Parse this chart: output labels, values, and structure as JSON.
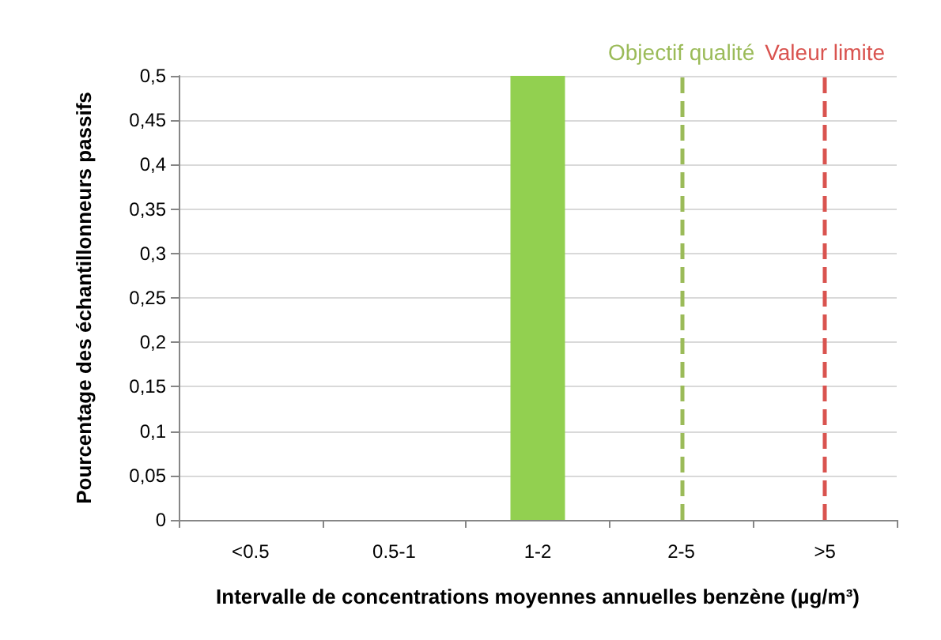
{
  "chart_data": {
    "type": "bar",
    "xlabel": "Intervalle de concentrations moyennes annuelles benzène (µg/m³)",
    "ylabel": "Pourcentage des échantillonneurs passifs",
    "categories": [
      "<0.5",
      "0.5-1",
      "1-2",
      "2-5",
      ">5"
    ],
    "values": [
      0,
      0,
      0.5,
      0,
      0
    ],
    "color": "#92d050",
    "ylim": [
      0,
      0.5
    ],
    "yticks": [
      0,
      {
        "value": 0.05,
        "label": "0,05"
      },
      {
        "value": 0.1,
        "label": "0,1"
      },
      {
        "value": 0.15,
        "label": "0,15"
      },
      {
        "value": 0.2,
        "label": "0,2"
      },
      {
        "value": 0.25,
        "label": "0,25"
      },
      {
        "value": 0.3,
        "label": "0,3"
      },
      {
        "value": 0.35,
        "label": "0,35"
      },
      {
        "value": 0.4,
        "label": "0,4"
      },
      {
        "value": 0.45,
        "label": "0,45"
      },
      {
        "value": 0.5,
        "label": "0,5"
      }
    ],
    "grid": "y",
    "ref_lines": [
      {
        "axis": "x",
        "value": "2-5",
        "label": "Objectif qualité",
        "color": "#9bbb59",
        "line_style": "dashed"
      },
      {
        "axis": "x",
        "value": ">5",
        "label": "Valeur limite",
        "color": "#d9534f",
        "line_style": "dashed"
      }
    ]
  }
}
